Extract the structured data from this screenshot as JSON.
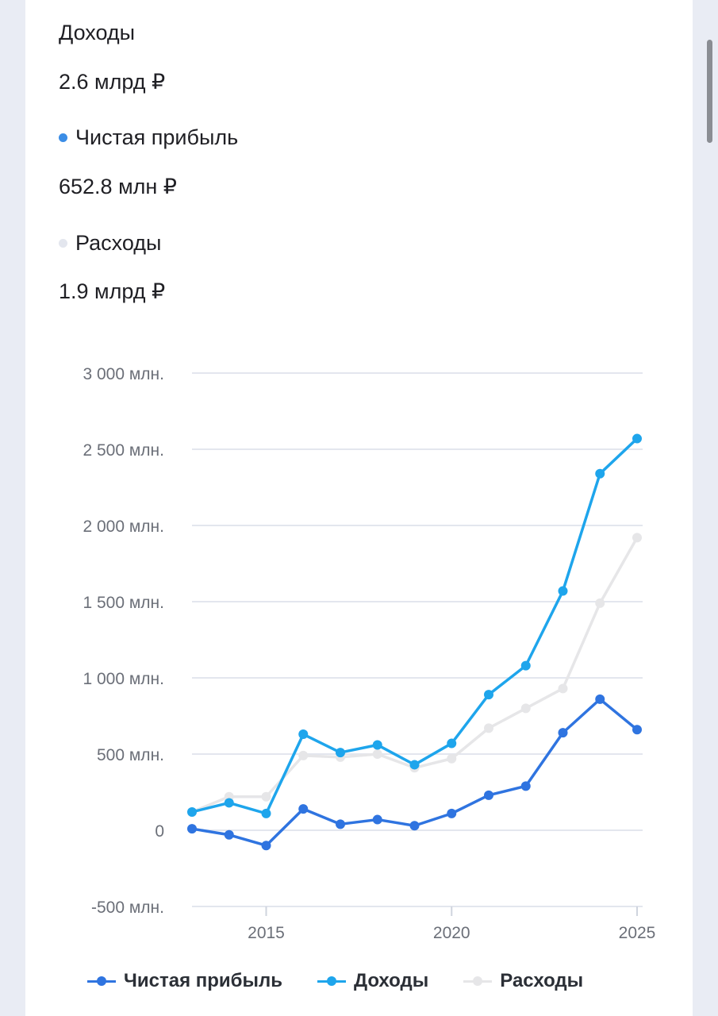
{
  "summary": {
    "income_label": "Доходы",
    "income_value": "2.6 млрд ₽",
    "profit_label": "Чистая прибыль",
    "profit_value": "652.8 млн ₽",
    "expenses_label": "Расходы",
    "expenses_value": "1.9 млрд ₽"
  },
  "colors": {
    "profit": "#2f74e0",
    "income": "#1ea5ec",
    "expenses": "#e6e6e8",
    "grid": "#e3e6ee"
  },
  "chart_data": {
    "type": "line",
    "title": "",
    "xlabel": "",
    "ylabel": "",
    "x": [
      2013,
      2014,
      2015,
      2016,
      2017,
      2018,
      2019,
      2020,
      2021,
      2022,
      2023,
      2024,
      2025
    ],
    "xlim": [
      2013,
      2025
    ],
    "x_ticks": [
      2015,
      2020,
      2025
    ],
    "ylim": [
      -500,
      3000
    ],
    "y_ticks": [
      {
        "value": 3000,
        "label": "3 000 млн."
      },
      {
        "value": 2500,
        "label": "2 500 млн."
      },
      {
        "value": 2000,
        "label": "2 000 млн."
      },
      {
        "value": 1500,
        "label": "1 500 млн."
      },
      {
        "value": 1000,
        "label": "1 000 млн."
      },
      {
        "value": 500,
        "label": "500 млн."
      },
      {
        "value": 0,
        "label": "0"
      },
      {
        "value": -500,
        "label": "-500 млн."
      }
    ],
    "grid": true,
    "legend_position": "bottom",
    "series": [
      {
        "name": "Расходы",
        "key": "expenses",
        "values": [
          120,
          220,
          220,
          490,
          480,
          500,
          410,
          470,
          670,
          800,
          930,
          1490,
          1920
        ]
      },
      {
        "name": "Доходы",
        "key": "income",
        "values": [
          120,
          180,
          110,
          630,
          510,
          560,
          430,
          570,
          890,
          1080,
          1570,
          2340,
          2570
        ]
      },
      {
        "name": "Чистая прибыль",
        "key": "profit",
        "values": [
          10,
          -30,
          -100,
          140,
          40,
          70,
          30,
          110,
          230,
          290,
          640,
          860,
          660
        ]
      }
    ],
    "legend": [
      {
        "name": "Чистая прибыль",
        "key": "profit"
      },
      {
        "name": "Доходы",
        "key": "income"
      },
      {
        "name": "Расходы",
        "key": "expenses"
      }
    ]
  }
}
